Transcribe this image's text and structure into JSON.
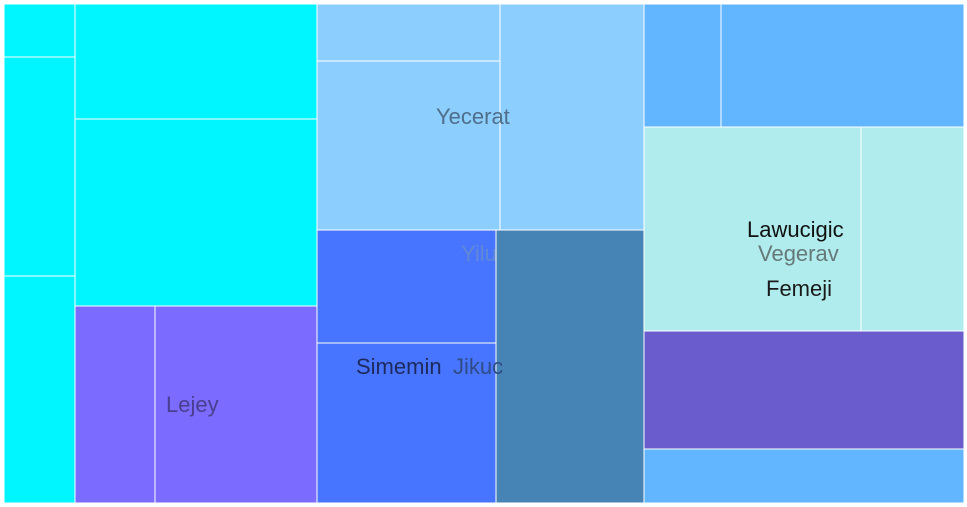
{
  "chart_data": {
    "type": "treemap",
    "title": "",
    "labels": [
      {
        "text": "Yecerat",
        "color": "#4f6e8a",
        "opacity": 1
      },
      {
        "text": "Yilu",
        "color": "#6a8fc8",
        "opacity": 0.75
      },
      {
        "text": "Simemin",
        "color": "#1e2a5e",
        "opacity": 1
      },
      {
        "text": "Jikuc",
        "color": "#2f4c86",
        "opacity": 1
      },
      {
        "text": "Lejey",
        "color": "#4a3f8f",
        "opacity": 1
      },
      {
        "text": "Lawucigic",
        "color": "#111111",
        "opacity": 1
      },
      {
        "text": "Vegerav",
        "color": "#667878",
        "opacity": 1
      },
      {
        "text": "Femeji",
        "color": "#1a1a1a",
        "opacity": 1
      }
    ],
    "groups": [
      {
        "color": "#00f6ff",
        "tiles": 5
      },
      {
        "color": "#7b6cff",
        "tiles": 2
      },
      {
        "color": "#8ccfff",
        "tiles": 3
      },
      {
        "color": "#4775ff",
        "tiles": 2
      },
      {
        "color": "#4784b6",
        "tiles": 1
      },
      {
        "color": "#62b5ff",
        "tiles": 3
      },
      {
        "color": "#b0eced",
        "tiles": 2
      },
      {
        "color": "#6a5ccd",
        "tiles": 1
      }
    ]
  }
}
